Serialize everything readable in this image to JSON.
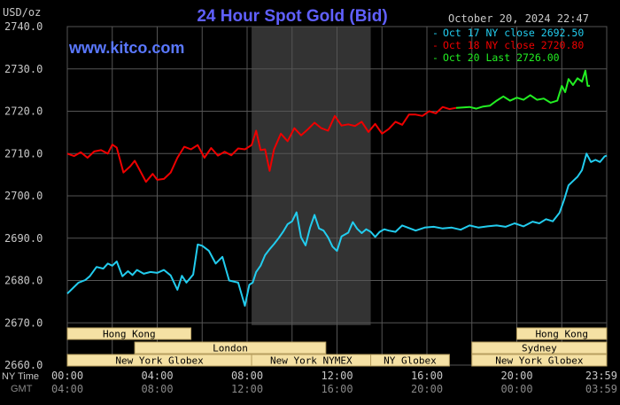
{
  "chart_data": {
    "type": "line",
    "title": "24 Hour Spot Gold (Bid)",
    "site": "www.kitco.com",
    "unit_label": "USD/oz",
    "date_label": "October 20, 2024 22:47",
    "ylim": [
      2660,
      2740
    ],
    "y_ticks": [
      "2660.0",
      "2670.0",
      "2680.0",
      "2690.0",
      "2700.0",
      "2710.0",
      "2720.0",
      "2730.0",
      "2740.0"
    ],
    "x_range_hours": [
      0,
      24
    ],
    "x_ticks_ny": [
      "00:00",
      "04:00",
      "08:00",
      "12:00",
      "16:00",
      "20:00",
      "23:59"
    ],
    "x_ticks_gmt": [
      "04:00",
      "08:00",
      "12:00",
      "16:00",
      "20:00",
      "00:00",
      "03:59"
    ],
    "row_labels": [
      "NY Time",
      "GMT"
    ],
    "grid": true,
    "legend_position": "top-right",
    "colors": {
      "background": "#000000",
      "title": "#6060ff",
      "site": "#5a78ff",
      "grid": "#555555",
      "axis_text": "#c8c8c8",
      "session_fill": "#f5e1a4",
      "session_border": "#b8a060",
      "session_text": "#000000",
      "nymex_shade": "#333333"
    },
    "series": [
      {
        "name": "Oct 17 NY close 2692.50",
        "color": "#22ccee",
        "x": [
          0,
          0.25,
          0.5,
          0.8,
          1.0,
          1.3,
          1.6,
          1.8,
          2.0,
          2.2,
          2.45,
          2.7,
          2.9,
          3.1,
          3.4,
          3.7,
          4.0,
          4.3,
          4.6,
          4.9,
          5.1,
          5.3,
          5.6,
          5.8,
          6.0,
          6.3,
          6.6,
          6.9,
          7.2,
          7.6,
          7.9,
          8.1,
          8.25,
          8.4,
          8.6,
          8.8,
          9.0,
          9.2,
          9.4,
          9.6,
          9.8,
          10.0,
          10.2,
          10.4,
          10.6,
          10.8,
          11.0,
          11.2,
          11.4,
          11.6,
          11.8,
          12.0,
          12.2,
          12.5,
          12.7,
          12.9,
          13.1,
          13.3,
          13.5,
          13.7,
          13.9,
          14.1,
          14.3,
          14.6,
          14.9,
          15.2,
          15.5,
          15.9,
          16.3,
          16.7,
          17.1,
          17.5,
          17.9,
          18.3,
          18.7,
          19.1,
          19.5,
          19.9,
          20.3,
          20.7,
          21.0,
          21.3,
          21.6,
          21.9,
          22.1,
          22.3,
          22.5,
          22.7,
          22.9,
          23.1,
          23.3,
          23.5,
          23.7,
          23.9,
          24.0
        ],
        "values": [
          2676.9,
          2678.2,
          2679.5,
          2680.1,
          2681.0,
          2683.2,
          2682.8,
          2684.0,
          2683.5,
          2684.5,
          2681.0,
          2682.2,
          2681.3,
          2682.5,
          2681.6,
          2682.0,
          2681.8,
          2682.5,
          2681.2,
          2677.8,
          2681.1,
          2679.5,
          2681.4,
          2688.5,
          2688.2,
          2687.0,
          2684.0,
          2685.6,
          2680.0,
          2679.5,
          2674.0,
          2679.0,
          2679.5,
          2682.0,
          2683.5,
          2686.0,
          2687.4,
          2688.6,
          2690.0,
          2691.5,
          2693.3,
          2694.0,
          2696.1,
          2690.2,
          2688.3,
          2692.5,
          2695.5,
          2692.3,
          2691.8,
          2690.2,
          2688.0,
          2687.0,
          2690.4,
          2691.3,
          2693.8,
          2692.2,
          2691.2,
          2692.1,
          2691.5,
          2690.3,
          2691.5,
          2692.1,
          2691.8,
          2691.5,
          2693.0,
          2692.4,
          2691.8,
          2692.5,
          2692.7,
          2692.3,
          2692.5,
          2692.0,
          2693.0,
          2692.5,
          2692.8,
          2693.0,
          2692.7,
          2693.5,
          2692.8,
          2693.9,
          2693.5,
          2694.5,
          2694.0,
          2696.0,
          2699.0,
          2702.5,
          2703.5,
          2704.5,
          2706.1,
          2710.0,
          2708.0,
          2708.5,
          2708.0,
          2709.3,
          2709.5
        ]
      },
      {
        "name": "Oct 18 NY close 2720.80",
        "color": "#ee0000",
        "x": [
          0,
          0.3,
          0.6,
          0.9,
          1.2,
          1.5,
          1.8,
          2.0,
          2.2,
          2.5,
          2.8,
          3.0,
          3.2,
          3.5,
          3.8,
          4.0,
          4.3,
          4.6,
          4.9,
          5.2,
          5.5,
          5.8,
          6.1,
          6.4,
          6.7,
          7.0,
          7.3,
          7.6,
          7.9,
          8.2,
          8.4,
          8.6,
          8.8,
          9.0,
          9.2,
          9.5,
          9.8,
          10.1,
          10.4,
          10.7,
          11.0,
          11.3,
          11.6,
          11.9,
          12.2,
          12.5,
          12.8,
          13.1,
          13.4,
          13.7,
          14.0,
          14.3,
          14.6,
          14.9,
          15.2,
          15.5,
          15.8,
          16.1,
          16.4,
          16.7,
          17.0,
          17.3
        ],
        "values": [
          2710.0,
          2709.4,
          2710.3,
          2709.0,
          2710.5,
          2710.8,
          2710.0,
          2712.1,
          2711.4,
          2705.5,
          2707.0,
          2708.3,
          2706.3,
          2703.3,
          2705.2,
          2703.8,
          2704.0,
          2705.5,
          2709.0,
          2711.6,
          2711.0,
          2712.0,
          2709.0,
          2711.3,
          2709.5,
          2710.4,
          2709.6,
          2711.2,
          2711.0,
          2712.0,
          2715.4,
          2710.8,
          2711.0,
          2705.9,
          2711.0,
          2714.7,
          2712.9,
          2716.0,
          2714.3,
          2715.7,
          2717.3,
          2716.0,
          2715.4,
          2718.9,
          2716.6,
          2716.9,
          2716.5,
          2717.5,
          2715.1,
          2717.0,
          2714.7,
          2715.8,
          2717.5,
          2716.8,
          2719.2,
          2719.2,
          2718.9,
          2720.0,
          2719.5,
          2721.0,
          2720.5,
          2720.8
        ]
      },
      {
        "name": "Oct 20 Last 2726.00",
        "color": "#22ee22",
        "x": [
          17.3,
          17.6,
          17.9,
          18.2,
          18.5,
          18.8,
          19.1,
          19.4,
          19.7,
          20.0,
          20.3,
          20.6,
          20.9,
          21.2,
          21.5,
          21.8,
          22.0,
          22.15,
          22.3,
          22.5,
          22.7,
          22.9,
          23.05,
          23.15,
          23.25
        ],
        "values": [
          2720.8,
          2720.9,
          2721.0,
          2720.6,
          2721.1,
          2721.3,
          2722.5,
          2723.5,
          2722.5,
          2723.2,
          2722.7,
          2723.8,
          2722.7,
          2723.0,
          2722.0,
          2722.5,
          2726.0,
          2724.5,
          2727.6,
          2726.2,
          2727.8,
          2727.0,
          2729.6,
          2726.0,
          2726.0
        ]
      }
    ],
    "sessions": [
      {
        "label": "Hong Kong",
        "row": 0,
        "start": 0,
        "end": 5.5
      },
      {
        "label": "Hong Kong",
        "row": 0,
        "start": 20.0,
        "end": 24.0
      },
      {
        "label": "London",
        "row": 1,
        "start": 3.0,
        "end": 11.5
      },
      {
        "label": "Sydney",
        "row": 1,
        "start": 18.0,
        "end": 24.0
      },
      {
        "label": "New York Globex",
        "row": 2,
        "start": 0,
        "end": 8.2
      },
      {
        "label": "New York NYMEX",
        "row": 2,
        "start": 8.2,
        "end": 13.5
      },
      {
        "label": "NY Globex",
        "row": 2,
        "start": 13.5,
        "end": 17.0
      },
      {
        "label": "New York Globex",
        "row": 2,
        "start": 18.0,
        "end": 24.0
      }
    ],
    "nymex_hours": [
      8.2,
      13.5
    ]
  }
}
